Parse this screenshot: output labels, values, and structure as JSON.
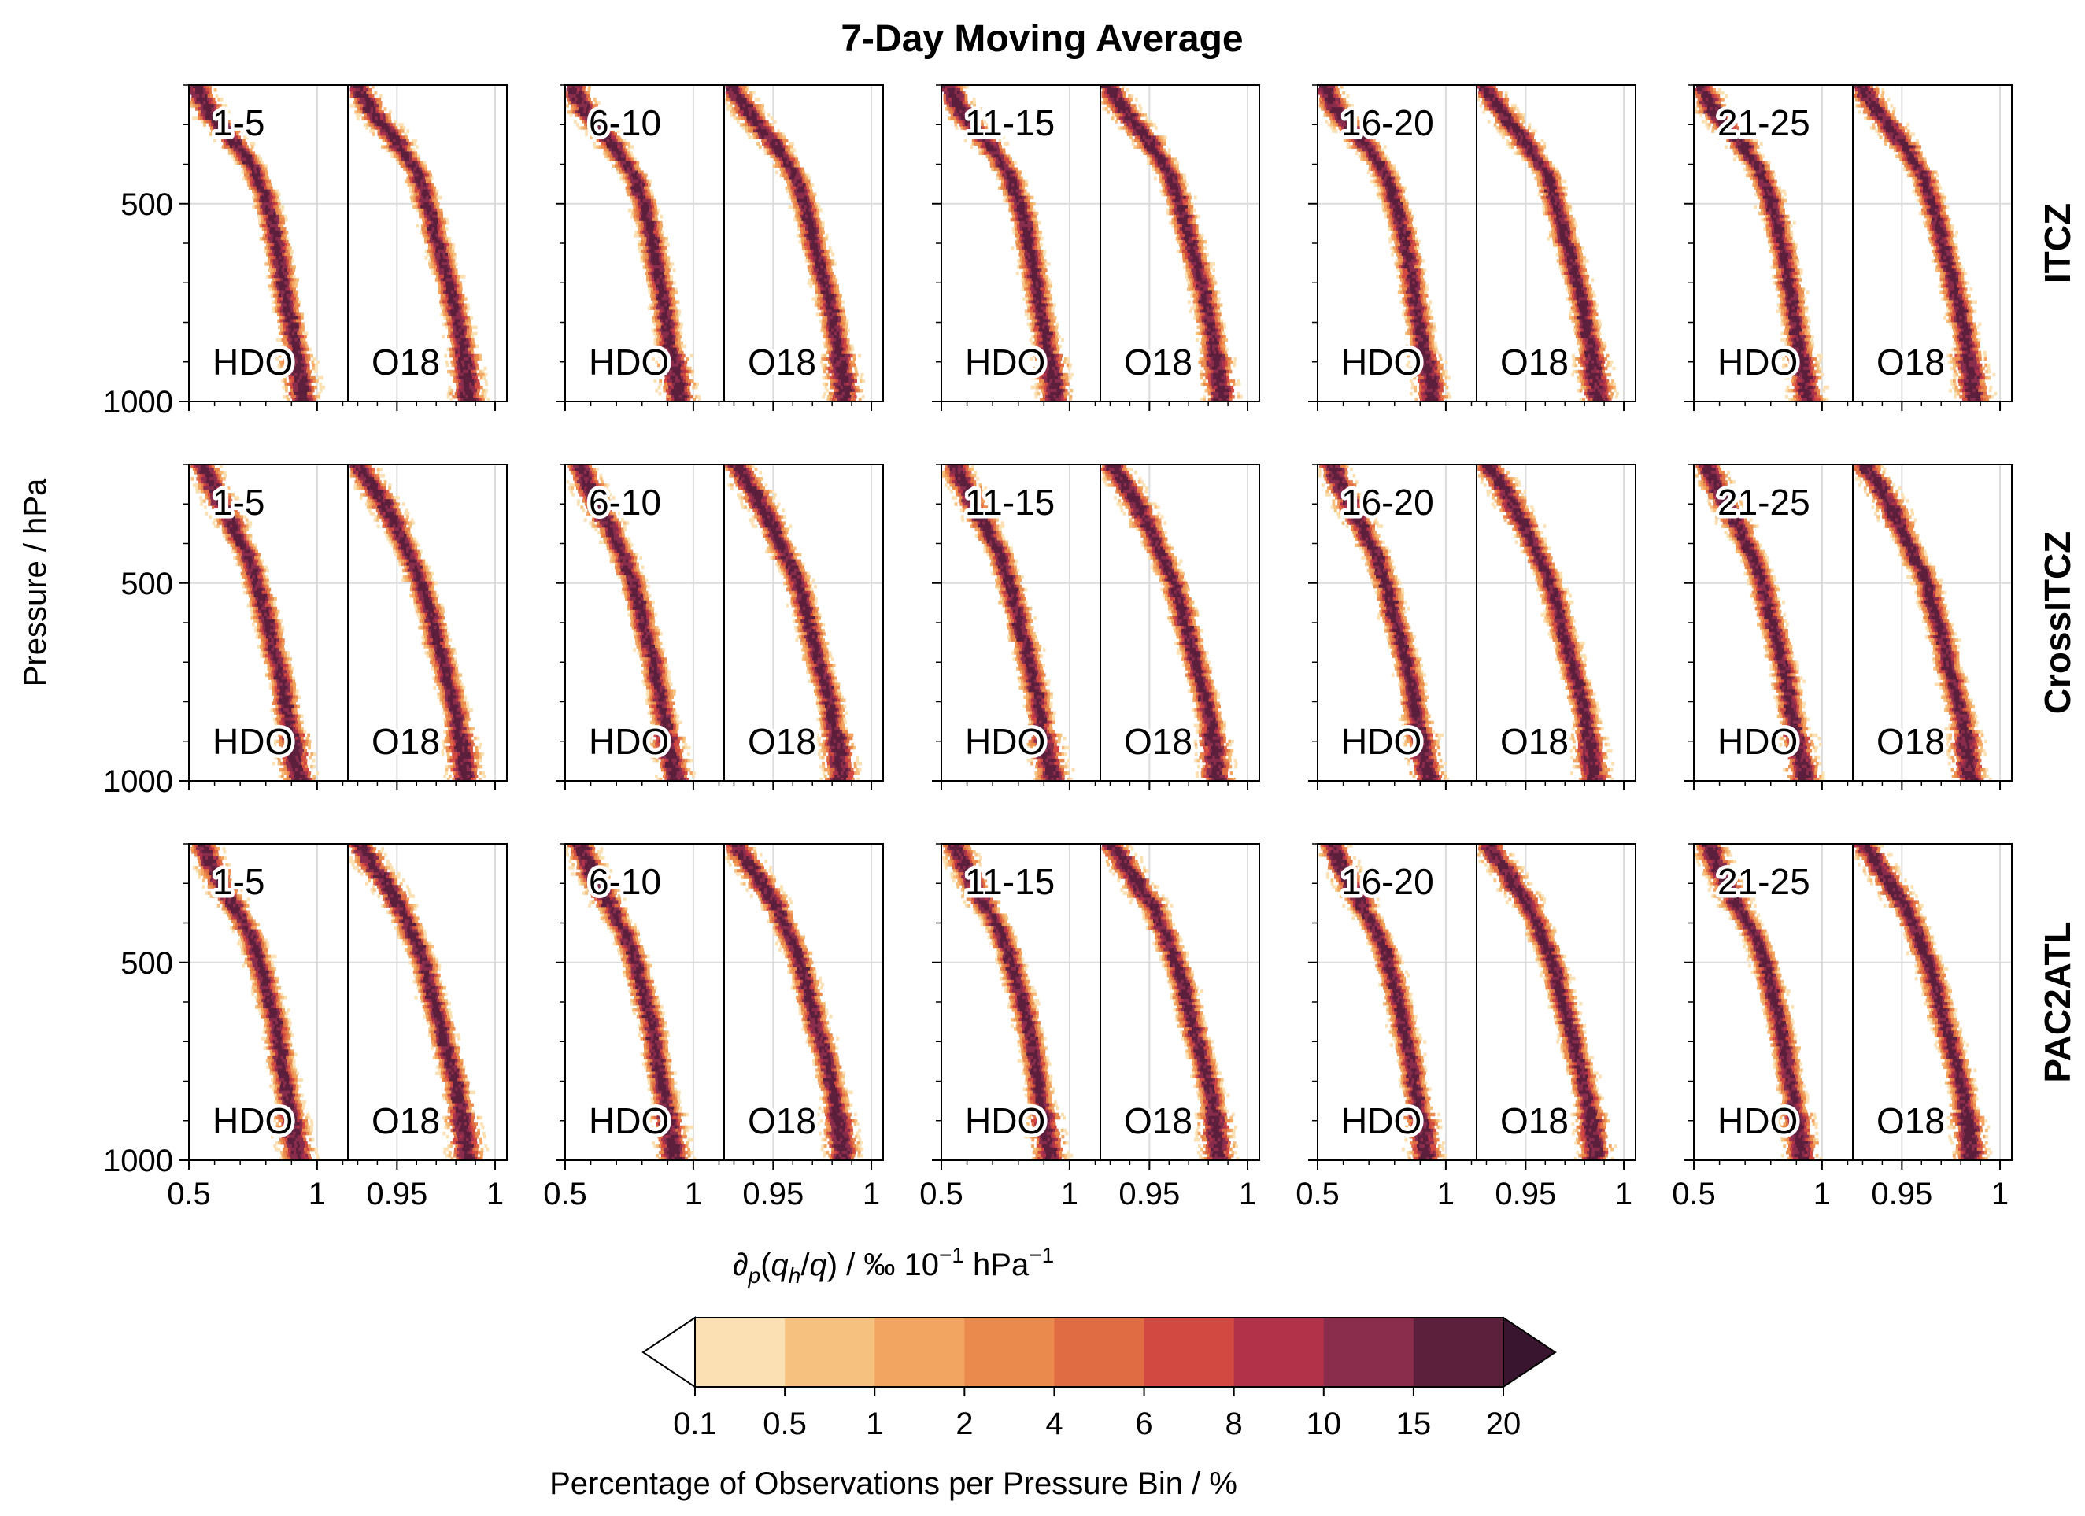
{
  "figure": {
    "title": "7-Day Moving Average",
    "ylabel": "Pressure / hPa",
    "xlabel": "∂p(qh/q) / ‰ 10⁻¹ hPa⁻¹",
    "colorbar_label": "Percentage of Observations per Pressure Bin / %"
  },
  "chart_data": {
    "type": "heatmap",
    "title": "7-Day Moving Average",
    "rows": [
      "ITCZ",
      "CrossITCZ",
      "PAC2ATL"
    ],
    "columns": [
      "1-5",
      "6-10",
      "11-15",
      "16-20",
      "21-25"
    ],
    "subpanels": [
      "HDO",
      "O18"
    ],
    "y_axis": {
      "label": "Pressure / hPa",
      "range": [
        1000,
        200
      ],
      "inverted": true,
      "ticks": [
        500,
        1000
      ],
      "tick_labels": [
        "500",
        "1000"
      ]
    },
    "x_axis": {
      "label": "∂p(qh/q) / ‰ 10⁻¹ hPa⁻¹",
      "HDO": {
        "range": [
          0.5,
          1.12
        ],
        "ticks": [
          0.5,
          1
        ],
        "tick_labels": [
          "0.5",
          "1"
        ]
      },
      "O18": {
        "range": [
          0.925,
          1.006
        ],
        "ticks": [
          0.95,
          1
        ],
        "tick_labels": [
          "0.95",
          "1"
        ]
      }
    },
    "grid": true,
    "colorbar": {
      "label": "Percentage of Observations per Pressure Bin / %",
      "boundaries": [
        0.1,
        0.5,
        1,
        2,
        4,
        6,
        8,
        10,
        15,
        20
      ],
      "tick_labels": [
        "0.1",
        "0.5",
        "1",
        "2",
        "4",
        "6",
        "8",
        "10",
        "15",
        "20"
      ],
      "colors": [
        "#fbe0b4",
        "#f6c07f",
        "#f2a561",
        "#ea8a4c",
        "#e06c44",
        "#d14940",
        "#b13249",
        "#8a2d4c",
        "#5c1f3c"
      ],
      "under_color": "#ffffff",
      "over_color": "#3a1530",
      "extend": "both"
    },
    "profile_ridge": {
      "pressure_hPa": [
        200,
        275,
        350,
        425,
        500,
        575,
        650,
        725,
        800,
        875,
        950,
        1000
      ],
      "HDO": {
        "ITCZ": [
          0.52,
          0.58,
          0.68,
          0.76,
          0.8,
          0.83,
          0.85,
          0.87,
          0.89,
          0.91,
          0.93,
          0.94
        ],
        "CrossITCZ": [
          0.55,
          0.6,
          0.66,
          0.72,
          0.76,
          0.79,
          0.82,
          0.85,
          0.87,
          0.89,
          0.91,
          0.93
        ],
        "PAC2ATL": [
          0.55,
          0.6,
          0.66,
          0.73,
          0.77,
          0.8,
          0.83,
          0.85,
          0.87,
          0.89,
          0.91,
          0.92
        ]
      },
      "O18": {
        "ITCZ": [
          0.928,
          0.938,
          0.95,
          0.96,
          0.965,
          0.969,
          0.973,
          0.977,
          0.98,
          0.983,
          0.985,
          0.986
        ],
        "CrossITCZ": [
          0.93,
          0.94,
          0.948,
          0.955,
          0.962,
          0.966,
          0.97,
          0.974,
          0.978,
          0.981,
          0.983,
          0.984
        ],
        "PAC2ATL": [
          0.93,
          0.94,
          0.95,
          0.957,
          0.963,
          0.967,
          0.971,
          0.975,
          0.979,
          0.982,
          0.984,
          0.985
        ]
      }
    }
  }
}
